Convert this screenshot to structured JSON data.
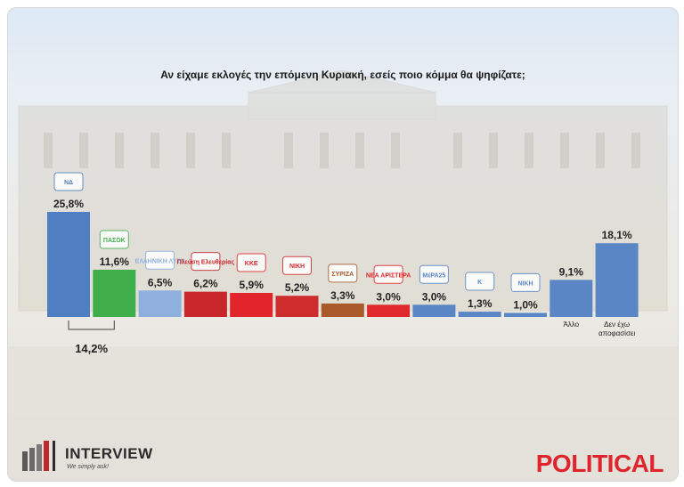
{
  "chart_data": {
    "type": "bar",
    "title": "Αν είχαμε εκλογές την επόμενη Κυριακή, εσείς ποιο κόμμα θα ψηφίζατε;",
    "xlabel": "",
    "ylabel": "",
    "categories": [
      {
        "label": "",
        "logo": "nd-logo",
        "logo_text": "ΝΔ",
        "color": "#4f7ec2"
      },
      {
        "label": "",
        "logo": "pasok-logo",
        "logo_text": "ΠΑΣΟΚ",
        "color": "#3fae4a"
      },
      {
        "label": "",
        "logo": "elliniki-lysi-logo",
        "logo_text": "ΕΛΛΗΝΙΚΗ ΛΥΣΗ",
        "color": "#8fb0dc"
      },
      {
        "label": "",
        "logo": "plefsi-logo",
        "logo_text": "Πλεύση Ελευθερίας",
        "color": "#c8262b"
      },
      {
        "label": "",
        "logo": "kke-logo",
        "logo_text": "ΚΚΕ",
        "color": "#e1252a"
      },
      {
        "label": "",
        "logo": "niki-logo",
        "logo_text": "ΝΙΚΗ",
        "color": "#cf2c2e"
      },
      {
        "label": "",
        "logo": "syriza-logo",
        "logo_text": "ΣΥΡΙΖΑ",
        "color": "#a85a2a"
      },
      {
        "label": "",
        "logo": "nea-aristera-logo",
        "logo_text": "ΝΕΑ ΑΡΙΣΤΕΡΑ",
        "color": "#e0292d"
      },
      {
        "label": "",
        "logo": "mera25-logo",
        "logo_text": "ΜέΡΑ25",
        "color": "#5b86c6"
      },
      {
        "label": "",
        "logo": "kinima-logo",
        "logo_text": "Κ",
        "color": "#5b86c6"
      },
      {
        "label": "",
        "logo": "spartiates-logo",
        "logo_text": "ΝΙΚΗ",
        "color": "#5b86c6"
      },
      {
        "label": "Άλλο",
        "logo": "",
        "logo_text": "",
        "color": "#5b86c6"
      },
      {
        "label": "Δεν έχω αποφασίσει",
        "logo": "",
        "logo_text": "",
        "color": "#5b86c6"
      }
    ],
    "values": [
      25.8,
      11.6,
      6.5,
      6.2,
      5.9,
      5.2,
      3.3,
      3.0,
      3.0,
      1.3,
      1.0,
      9.1,
      18.1
    ],
    "value_labels": [
      "25,8%",
      "11,6%",
      "6,5%",
      "6,2%",
      "5,9%",
      "5,2%",
      "3,3%",
      "3,0%",
      "3,0%",
      "1,3%",
      "1,0%",
      "9,1%",
      "18,1%"
    ],
    "annotations": [
      {
        "text": "14,2%",
        "spans": [
          0,
          1
        ]
      }
    ],
    "ylim": [
      0,
      28
    ],
    "grid": false,
    "legend": "none"
  },
  "branding": {
    "left_logo_name": "INTERVIEW",
    "left_logo_tagline": "We simply ask!",
    "right_logo_name": "POLITICAL"
  },
  "colors": {
    "interview_text": "#2b2b2b",
    "political_red": "#e0242b"
  }
}
